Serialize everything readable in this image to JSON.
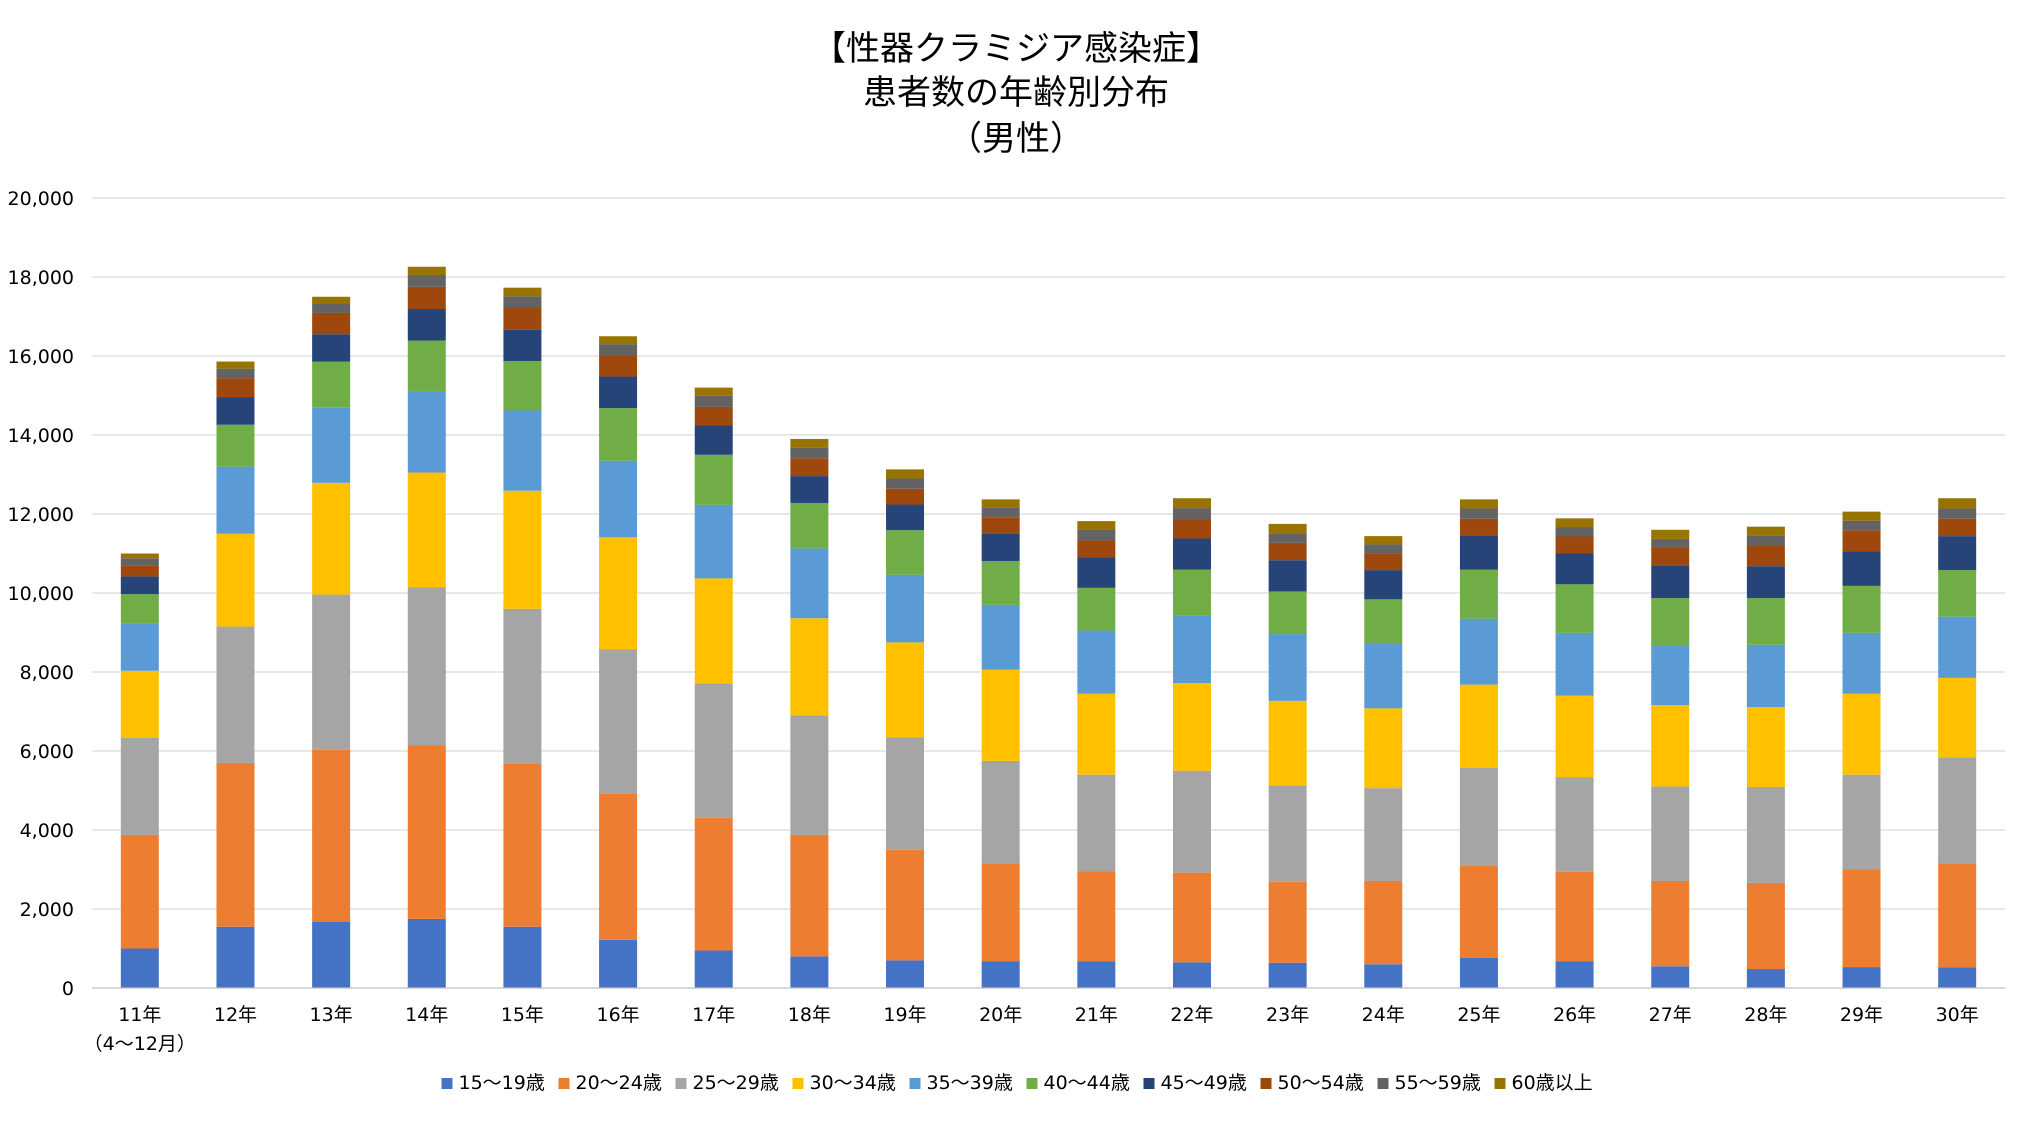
{
  "chart_data": {
    "type": "bar",
    "stacked": true,
    "title": [
      "【性器クラミジア感染症】",
      "患者数の年齢別分布",
      "（男性）"
    ],
    "xlabel": "",
    "ylabel": "",
    "ylim": [
      0,
      20000
    ],
    "yticks": [
      "0",
      "2,000",
      "4,000",
      "6,000",
      "8,000",
      "10,000",
      "12,000",
      "14,000",
      "16,000",
      "18,000",
      "20,000"
    ],
    "ytick_values": [
      0,
      2000,
      4000,
      6000,
      8000,
      10000,
      12000,
      14000,
      16000,
      18000,
      20000
    ],
    "grid": true,
    "legend_position": "bottom",
    "categories": [
      [
        "11年",
        "（4〜12月）"
      ],
      [
        "12年"
      ],
      [
        "13年"
      ],
      [
        "14年"
      ],
      [
        "15年"
      ],
      [
        "16年"
      ],
      [
        "17年"
      ],
      [
        "18年"
      ],
      [
        "19年"
      ],
      [
        "20年"
      ],
      [
        "21年"
      ],
      [
        "22年"
      ],
      [
        "23年"
      ],
      [
        "24年"
      ],
      [
        "25年"
      ],
      [
        "26年"
      ],
      [
        "27年"
      ],
      [
        "28年"
      ],
      [
        "29年"
      ],
      [
        "30年"
      ]
    ],
    "series": [
      {
        "name": "15〜19歳",
        "color": "#4472c4",
        "values": [
          1000,
          1550,
          1680,
          1750,
          1550,
          1220,
          950,
          800,
          700,
          680,
          680,
          650,
          640,
          600,
          760,
          680,
          550,
          480,
          530,
          520
        ]
      },
      {
        "name": "20〜24歳",
        "color": "#ed7d31",
        "values": [
          2880,
          4150,
          4350,
          4400,
          4130,
          3700,
          3360,
          3080,
          2800,
          2480,
          2270,
          2270,
          2050,
          2110,
          2330,
          2260,
          2160,
          2180,
          2480,
          2640
        ]
      },
      {
        "name": "25〜29歳",
        "color": "#a5a5a5",
        "values": [
          2450,
          3450,
          3930,
          4000,
          3920,
          3660,
          3400,
          3020,
          2850,
          2590,
          2450,
          2580,
          2440,
          2350,
          2480,
          2400,
          2390,
          2430,
          2390,
          2680
        ]
      },
      {
        "name": "30〜34歳",
        "color": "#ffc000",
        "values": [
          1700,
          2350,
          2830,
          2900,
          2990,
          2830,
          2660,
          2460,
          2400,
          2310,
          2050,
          2220,
          2140,
          2020,
          2110,
          2060,
          2060,
          2020,
          2050,
          2010
        ]
      },
      {
        "name": "35〜39歳",
        "color": "#5b9bd5",
        "values": [
          1200,
          1700,
          1900,
          2050,
          2030,
          1940,
          1860,
          1770,
          1710,
          1640,
          1600,
          1720,
          1690,
          1630,
          1670,
          1590,
          1510,
          1580,
          1540,
          1550
        ]
      },
      {
        "name": "40〜44歳",
        "color": "#70ad47",
        "values": [
          740,
          1060,
          1170,
          1290,
          1250,
          1330,
          1270,
          1150,
          1130,
          1110,
          1080,
          1150,
          1080,
          1130,
          1240,
          1230,
          1200,
          1180,
          1190,
          1180
        ]
      },
      {
        "name": "45〜49歳",
        "color": "#264478",
        "values": [
          450,
          700,
          690,
          800,
          790,
          800,
          740,
          680,
          650,
          700,
          770,
          790,
          790,
          740,
          870,
          780,
          830,
          810,
          870,
          860
        ]
      },
      {
        "name": "50〜54歳",
        "color": "#9e480e",
        "values": [
          280,
          480,
          540,
          560,
          580,
          520,
          470,
          450,
          400,
          410,
          430,
          480,
          440,
          430,
          420,
          430,
          440,
          510,
          540,
          440
        ]
      },
      {
        "name": "55〜59歳",
        "color": "#636363",
        "values": [
          180,
          240,
          240,
          300,
          270,
          300,
          280,
          270,
          260,
          250,
          280,
          290,
          240,
          220,
          260,
          240,
          230,
          270,
          240,
          260
        ]
      },
      {
        "name": "60歳以上",
        "color": "#997300",
        "values": [
          120,
          180,
          170,
          210,
          220,
          200,
          210,
          220,
          230,
          200,
          210,
          250,
          240,
          210,
          230,
          220,
          230,
          220,
          230,
          260
        ]
      }
    ]
  }
}
